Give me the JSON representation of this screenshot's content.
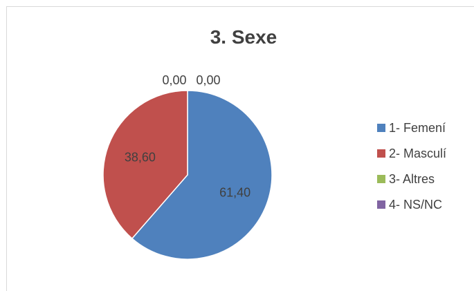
{
  "chart_data": {
    "type": "pie",
    "title": "3. Sexe",
    "categories": [
      "1- Femení",
      "2- Masculí",
      "3- Altres",
      "4- NS/NC"
    ],
    "values": [
      61.4,
      38.6,
      0.0,
      0.0
    ],
    "data_labels": [
      "61,40",
      "38,60",
      "0,00",
      "0,00"
    ],
    "colors": [
      "#4f81bd",
      "#c0504d",
      "#9bbb59",
      "#8064a2"
    ],
    "legend_position": "right",
    "start_angle": "12 o'clock, clockwise"
  }
}
